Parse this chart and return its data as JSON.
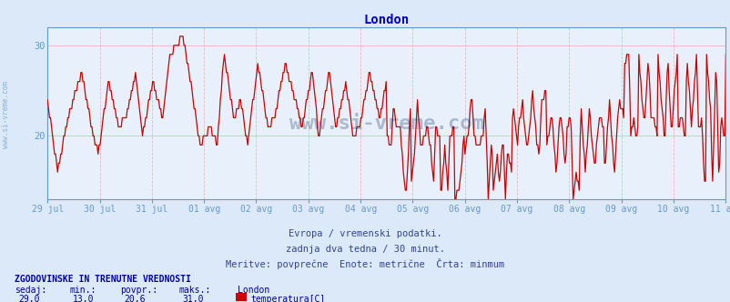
{
  "title": "London",
  "title_color": "#0000cc",
  "title_fontsize": 10,
  "bg_color": "#dce9f8",
  "plot_bg_color": "#e8f0fb",
  "grid_color": "#e8b8b8",
  "line_color": "#cc0000",
  "line_width": 0.9,
  "ylim_min": 13,
  "ylim_max": 32,
  "yticks": [
    20,
    30
  ],
  "axis_color": "#6699cc",
  "x_labels": [
    "29 jul",
    "30 jul",
    "31 jul",
    "01 avg",
    "02 avg",
    "03 avg",
    "04 avg",
    "05 avg",
    "06 avg",
    "07 avg",
    "08 avg",
    "09 avg",
    "10 avg",
    "11 avg"
  ],
  "footer_line1": "Evropa / vremenski podatki.",
  "footer_line2": "zadnja dva tedna / 30 minut.",
  "footer_line3": "Meritve: povprečne  Enote: metrične  Črta: minmum",
  "footer_color": "#334499",
  "footer_fontsize": 8,
  "legend_title": "ZGODOVINSKE IN TRENUTNE VREDNOSTI",
  "legend_title_color": "#0000aa",
  "legend_col_headers": [
    "sedaj:",
    "min.:",
    "povpr.:",
    "maks.:",
    "London"
  ],
  "legend_vals": [
    "29,0",
    "13,0",
    "20,6",
    "31,0"
  ],
  "legend_series": "temperatura[C]",
  "legend_series_color": "#cc0000",
  "watermark": "www.si-vreme.com",
  "watermark_color": "#1a3a6e",
  "watermark_alpha": 0.3,
  "num_points": 672,
  "left_label": "www.si-vreme.com",
  "left_label_color": "#6699cc"
}
